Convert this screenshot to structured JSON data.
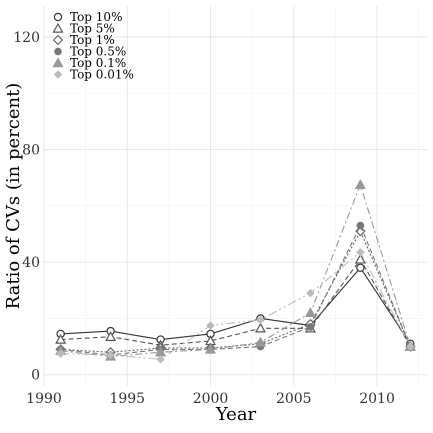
{
  "chart_data": {
    "type": "line",
    "title": "",
    "xlabel": "Year",
    "ylabel": "Ratio of CVs (in percent)",
    "xlim": [
      1990,
      2013
    ],
    "ylim": [
      -4,
      131
    ],
    "x_ticks": [
      1990,
      1995,
      2000,
      2005,
      2010
    ],
    "y_ticks": [
      0,
      40,
      80,
      120
    ],
    "grid": true,
    "legend_position": "top-left",
    "x": [
      1991,
      1994,
      1997,
      2000,
      2003,
      2006,
      2009,
      2012
    ],
    "series": [
      {
        "name": "Top 10%",
        "color": "#333333",
        "marker": "circle-open",
        "line": "solid",
        "values": [
          14.5,
          15.5,
          12.5,
          14.5,
          20,
          17.5,
          38,
          11
        ]
      },
      {
        "name": "Top 5%",
        "color": "#555555",
        "marker": "triangle-open",
        "line": "dashed",
        "values": [
          12.5,
          13.5,
          10.5,
          12,
          16.5,
          16.5,
          41,
          10
        ]
      },
      {
        "name": "Top 1%",
        "color": "#666666",
        "marker": "diamond-open",
        "line": "dotted",
        "values": [
          9,
          8,
          9.5,
          9.5,
          11,
          18,
          51,
          10
        ]
      },
      {
        "name": "Top 0.5%",
        "color": "#777777",
        "marker": "circle-filled",
        "line": "dashed",
        "values": [
          9,
          7,
          9,
          9,
          10,
          17,
          53,
          10
        ]
      },
      {
        "name": "Top 0.1%",
        "color": "#999999",
        "marker": "triangle-filled",
        "line": "dashdot",
        "values": [
          8.5,
          6.5,
          8,
          9,
          11.5,
          22,
          67.5,
          10
        ]
      },
      {
        "name": "Top 0.01%",
        "color": "#bbbbbb",
        "marker": "diamond-filled",
        "line": "dashdot2",
        "values": [
          7.5,
          7,
          5.5,
          17.5,
          19.5,
          29,
          43.5,
          10
        ]
      }
    ]
  }
}
